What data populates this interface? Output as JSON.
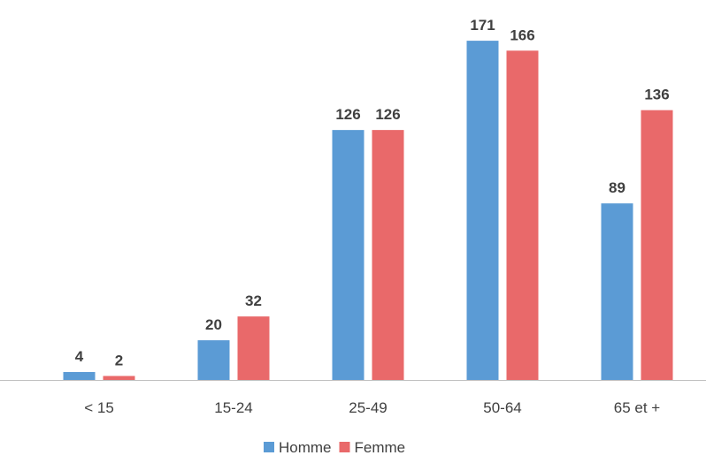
{
  "chart_data": {
    "type": "bar",
    "categories": [
      "< 15",
      "15-24",
      "25-49",
      "50-64",
      "65 et +"
    ],
    "series": [
      {
        "name": "Homme",
        "values": [
          4,
          20,
          126,
          171,
          89
        ],
        "color": "#5B9BD5"
      },
      {
        "name": "Femme",
        "values": [
          2,
          32,
          126,
          166,
          136
        ],
        "color": "#E9696A"
      }
    ],
    "data_labels": true,
    "ylim": [
      0,
      180
    ],
    "grid": false,
    "legend": {
      "position": "bottom"
    },
    "axis_color": "#BFBFBF",
    "label_color": "#404040"
  }
}
